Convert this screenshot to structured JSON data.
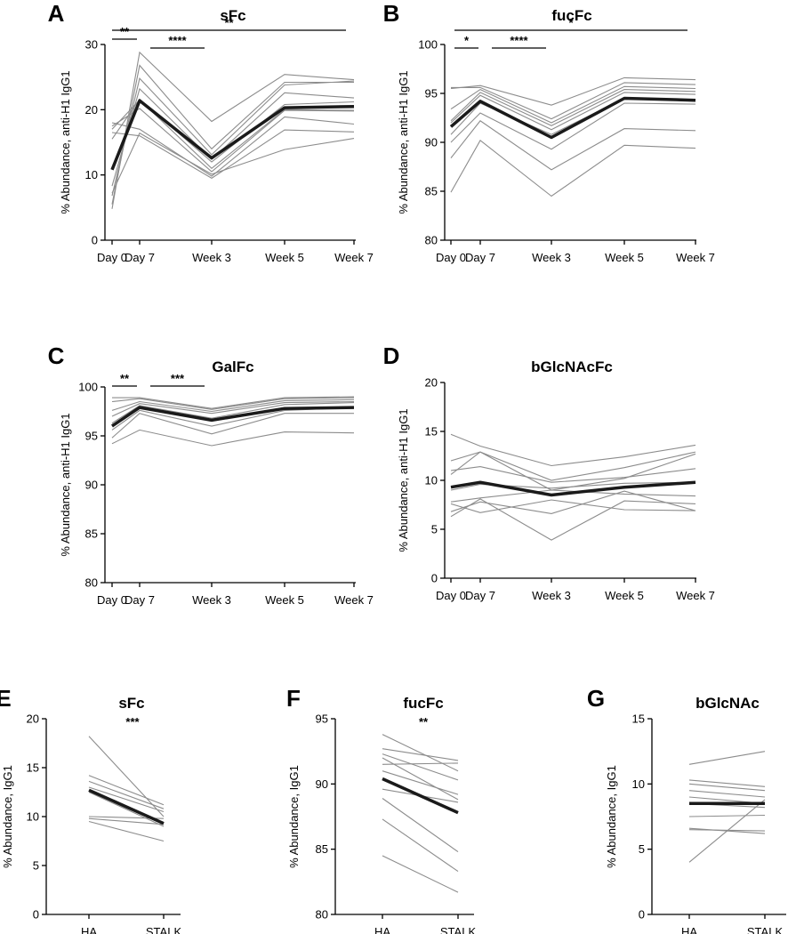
{
  "figure": "Anti-H1 IgG1 Fc glycosylation panels",
  "chart_data": [
    {
      "id": "A",
      "type": "line",
      "panel_label": "A",
      "title": "sFc",
      "ylabel": "% Abundance, anti-H1 IgG1",
      "x": [
        "Day 0",
        "Day 7",
        "Week 3",
        "Week 5",
        "Week 7"
      ],
      "ylim": [
        0,
        30
      ],
      "yticks": [
        0,
        10,
        20,
        30
      ],
      "mean": [
        10.8,
        21.4,
        12.6,
        20.3,
        20.5
      ],
      "individuals": [
        [
          4.8,
          28.8,
          18.2,
          25.4,
          24.6
        ],
        [
          5.5,
          26.8,
          14.0,
          24.2,
          24.2
        ],
        [
          6.8,
          24.8,
          13.1,
          23.8,
          24.4
        ],
        [
          8.3,
          23.2,
          12.4,
          22.6,
          21.8
        ],
        [
          15.5,
          21.6,
          12.0,
          20.8,
          21.2
        ],
        [
          17.0,
          21.5,
          11.0,
          20.0,
          19.9
        ],
        [
          17.5,
          20.2,
          10.5,
          19.9,
          19.8
        ],
        [
          18.0,
          17.0,
          9.8,
          18.9,
          17.8
        ],
        [
          16.5,
          16.0,
          9.5,
          16.9,
          16.6
        ],
        [
          7.2,
          16.4,
          10.1,
          13.9,
          15.6
        ]
      ],
      "significance": [
        {
          "from": "Day 0",
          "to": "Day 7",
          "label": "**"
        },
        {
          "from": "Day 7",
          "to": "Week 3",
          "label": "****"
        },
        {
          "from": "Day 0",
          "to": "Week 7",
          "label": "**"
        }
      ]
    },
    {
      "id": "B",
      "type": "line",
      "panel_label": "B",
      "title": "fucFc",
      "ylabel": "% Abundance, anti-H1 IgG1",
      "x": [
        "Day 0",
        "Day 7",
        "Week 3",
        "Week 5",
        "Week 7"
      ],
      "ylim": [
        80,
        100
      ],
      "yticks": [
        80,
        85,
        90,
        95,
        100
      ],
      "mean": [
        91.6,
        94.2,
        90.5,
        94.5,
        94.3
      ],
      "individuals": [
        [
          95.5,
          95.8,
          93.8,
          96.6,
          96.4
        ],
        [
          95.6,
          95.6,
          92.4,
          96.1,
          95.9
        ],
        [
          93.4,
          95.4,
          92.0,
          95.7,
          95.5
        ],
        [
          92.2,
          95.1,
          91.7,
          95.4,
          95.2
        ],
        [
          92.0,
          94.8,
          91.3,
          95.1,
          94.9
        ],
        [
          90.8,
          94.0,
          90.8,
          94.5,
          94.2
        ],
        [
          90.0,
          93.0,
          89.3,
          94.0,
          93.9
        ],
        [
          88.4,
          92.2,
          87.2,
          91.4,
          91.2
        ],
        [
          84.9,
          90.2,
          84.5,
          89.7,
          89.4
        ]
      ],
      "significance": [
        {
          "from": "Day 0",
          "to": "Day 7",
          "label": "*"
        },
        {
          "from": "Day 7",
          "to": "Week 3",
          "label": "****"
        },
        {
          "from": "Day 0",
          "to": "Week 7",
          "label": "*"
        }
      ]
    },
    {
      "id": "C",
      "type": "line",
      "panel_label": "C",
      "title": "GalFc",
      "ylabel": "% Abundance, anti-H1 IgG1",
      "x": [
        "Day 0",
        "Day 7",
        "Week 3",
        "Week 5",
        "Week 7"
      ],
      "ylim": [
        80,
        100
      ],
      "yticks": [
        80,
        85,
        90,
        95,
        100
      ],
      "mean": [
        96.0,
        97.9,
        96.6,
        97.8,
        97.9
      ],
      "individuals": [
        [
          98.9,
          98.9,
          97.8,
          98.9,
          99.0
        ],
        [
          98.5,
          98.8,
          97.7,
          98.8,
          98.9
        ],
        [
          97.6,
          98.5,
          97.5,
          98.6,
          98.7
        ],
        [
          97.0,
          98.3,
          97.3,
          98.4,
          98.5
        ],
        [
          96.3,
          98.1,
          96.8,
          98.2,
          98.4
        ],
        [
          95.6,
          97.6,
          96.0,
          97.6,
          97.9
        ],
        [
          94.8,
          97.3,
          95.2,
          97.3,
          97.3
        ],
        [
          94.2,
          95.6,
          94.0,
          95.4,
          95.3
        ]
      ],
      "significance": [
        {
          "from": "Day 0",
          "to": "Day 7",
          "label": "**"
        },
        {
          "from": "Day 7",
          "to": "Week 3",
          "label": "***"
        }
      ]
    },
    {
      "id": "D",
      "type": "line",
      "panel_label": "D",
      "title": "bGlcNAcFc",
      "ylabel": "% Abundance, anti-H1 IgG1",
      "x": [
        "Day 0",
        "Day 7",
        "Week 3",
        "Week 5",
        "Week 7"
      ],
      "ylim": [
        0,
        20
      ],
      "yticks": [
        0,
        5,
        10,
        15,
        20
      ],
      "mean": [
        9.3,
        9.8,
        8.5,
        9.3,
        9.8
      ],
      "individuals": [
        [
          14.7,
          13.5,
          11.5,
          12.4,
          13.6
        ],
        [
          12.0,
          12.9,
          10.0,
          11.3,
          12.9
        ],
        [
          10.6,
          12.9,
          9.0,
          10.2,
          12.7
        ],
        [
          11.0,
          11.4,
          9.8,
          10.3,
          11.2
        ],
        [
          9.0,
          9.6,
          9.2,
          9.7,
          9.8
        ],
        [
          7.8,
          8.2,
          9.0,
          8.6,
          8.4
        ],
        [
          7.6,
          6.7,
          8.0,
          7.0,
          6.9
        ],
        [
          6.8,
          7.8,
          6.6,
          8.9,
          6.9
        ],
        [
          6.3,
          8.1,
          3.9,
          7.9,
          7.6
        ]
      ],
      "significance": []
    },
    {
      "id": "E",
      "type": "line",
      "panel_label": "E",
      "title": "sFc",
      "ylabel": "% Abundance, IgG1",
      "x": [
        "HA",
        "STALK"
      ],
      "ylim": [
        0,
        20
      ],
      "yticks": [
        0,
        5,
        10,
        15,
        20
      ],
      "mean": [
        12.7,
        9.3
      ],
      "individuals": [
        [
          18.2,
          10.0
        ],
        [
          14.2,
          11.2
        ],
        [
          13.6,
          10.8
        ],
        [
          13.0,
          10.5
        ],
        [
          12.5,
          9.0
        ],
        [
          10.0,
          9.8
        ],
        [
          9.8,
          9.2
        ],
        [
          9.5,
          7.5
        ]
      ],
      "significance": [
        {
          "label": "***"
        }
      ]
    },
    {
      "id": "F",
      "type": "line",
      "panel_label": "F",
      "title": "fucFc",
      "ylabel": "% Abundance, IgG1",
      "x": [
        "HA",
        "STALK"
      ],
      "ylim": [
        80,
        95
      ],
      "yticks": [
        80,
        85,
        90,
        95
      ],
      "mean": [
        90.4,
        87.8
      ],
      "individuals": [
        [
          93.8,
          91.0
        ],
        [
          92.7,
          91.8
        ],
        [
          92.3,
          90.3
        ],
        [
          92.0,
          88.8
        ],
        [
          91.5,
          91.6
        ],
        [
          91.0,
          89.2
        ],
        [
          89.6,
          88.6
        ],
        [
          88.9,
          84.8
        ],
        [
          87.3,
          83.3
        ],
        [
          84.5,
          81.7
        ]
      ],
      "significance": [
        {
          "label": "**"
        }
      ]
    },
    {
      "id": "G",
      "type": "line",
      "panel_label": "G",
      "title": "bGlcNAc",
      "ylabel": "% Abundance, IgG1",
      "x": [
        "HA",
        "STALK"
      ],
      "ylim": [
        0,
        15
      ],
      "yticks": [
        0,
        5,
        10,
        15
      ],
      "mean": [
        8.5,
        8.5
      ],
      "individuals": [
        [
          11.5,
          12.5
        ],
        [
          10.3,
          9.8
        ],
        [
          10.0,
          9.5
        ],
        [
          9.5,
          9.0
        ],
        [
          9.0,
          8.5
        ],
        [
          8.5,
          8.2
        ],
        [
          7.5,
          7.6
        ],
        [
          6.6,
          6.2
        ],
        [
          6.5,
          6.4
        ],
        [
          4.0,
          8.8
        ]
      ],
      "significance": []
    }
  ]
}
